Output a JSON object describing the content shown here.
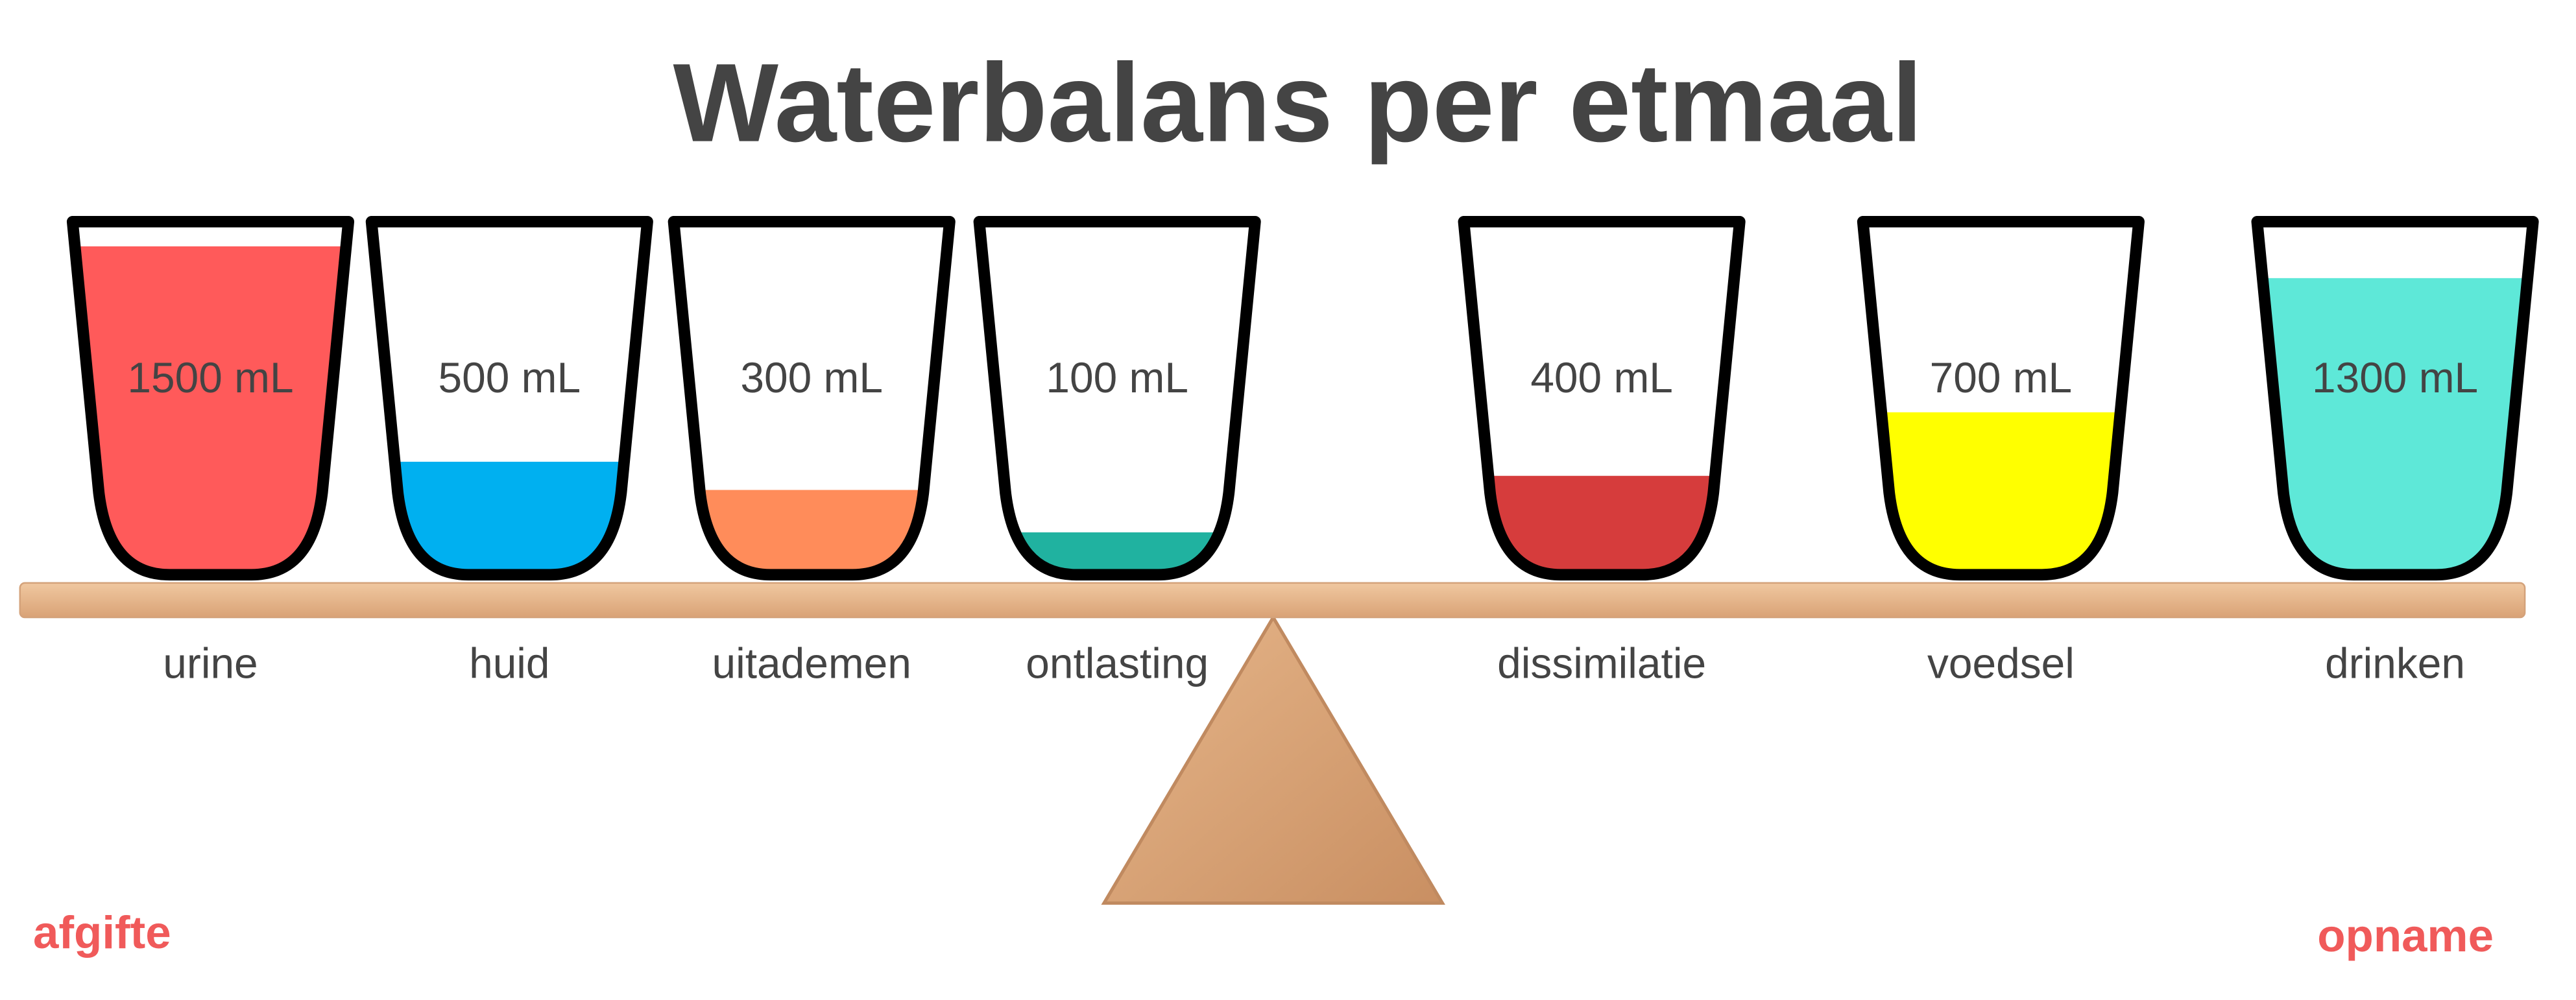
{
  "title": "Waterbalans per etmaal",
  "glasses": [
    {
      "amount": "1500 mL",
      "label": "urine",
      "color": "#ff5a5a"
    },
    {
      "amount": "500 mL",
      "label": "huid",
      "color": "#00b0f0"
    },
    {
      "amount": "300 mL",
      "label": "uitademen",
      "color": "#ff8c5a"
    },
    {
      "amount": "100 mL",
      "label": "ontlasting",
      "color": "#20b2a0"
    },
    {
      "amount": "400 mL",
      "label": "dissimilatie",
      "color": "#d63c3c"
    },
    {
      "amount": "700 mL",
      "label": "voedsel",
      "color": "#ffff00"
    },
    {
      "amount": "1300 mL",
      "label": "drinken",
      "color": "#5ee8d8"
    }
  ],
  "left_label": "afgifte",
  "right_label": "opname"
}
